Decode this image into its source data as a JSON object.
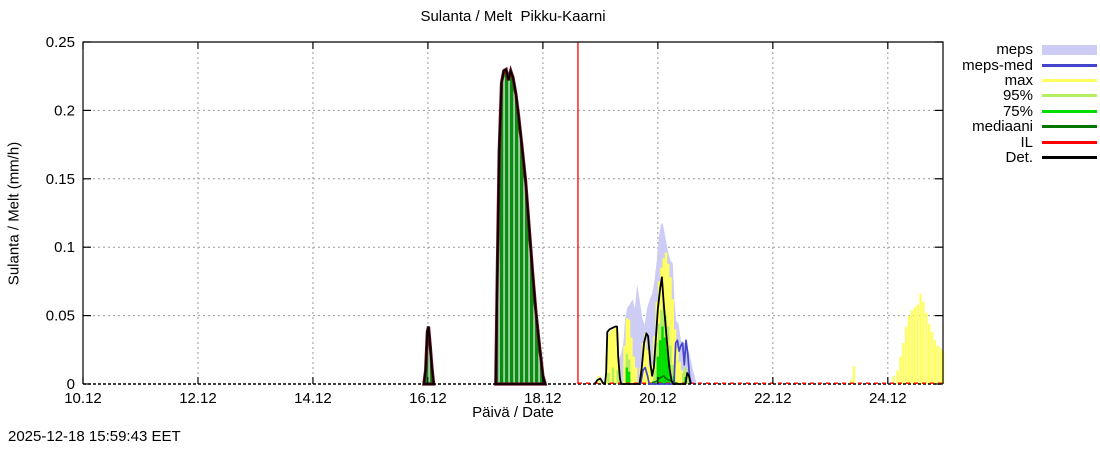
{
  "header": {
    "title": "Sulanta / Melt  Pikku-Kaarni"
  },
  "footer": {
    "timestamp": "2025-12-18 15:59:43 EET"
  },
  "chart_data": {
    "type": "area",
    "subtype": "ensemble-melt-forecast",
    "title": "Sulanta / Melt  Pikku-Kaarni",
    "xlabel": "Päivä / Date",
    "ylabel": "Sulanta / Melt (mm/h)",
    "xlim": [
      10,
      24.96
    ],
    "ylim": [
      0,
      0.25
    ],
    "grid": true,
    "xticks": {
      "values": [
        10,
        12,
        14,
        16,
        18,
        20,
        22,
        24
      ],
      "labels": [
        "10.12",
        "12.12",
        "14.12",
        "16.12",
        "18.12",
        "20.12",
        "22.12",
        "24.12"
      ]
    },
    "yticks": {
      "values": [
        0,
        0.05,
        0.1,
        0.15,
        0.2,
        0.25
      ],
      "labels": [
        "0",
        "0.05",
        "0.1",
        "0.15",
        "0.2",
        "0.25"
      ]
    },
    "colors": {
      "meps_band": "#ccccf5",
      "meps_med": "#4444cc",
      "max": "#ffff60",
      "p95": "#b4ef62",
      "p75": "#00dd00",
      "mediaani": "#007700",
      "il": "#ff0000",
      "det": "#000000",
      "observed_fill": "#0a8c12",
      "observed_edge": "#6b0f1e",
      "grid": "#999999"
    },
    "forecast_start_line": {
      "series": "IL",
      "x": 18.61,
      "color": "#ff0000"
    },
    "observed_areas": [
      [
        [
          15.93,
          0
        ],
        [
          15.96,
          0.01
        ],
        [
          15.99,
          0.038
        ],
        [
          16.01,
          0.042
        ],
        [
          16.04,
          0.028
        ],
        [
          16.07,
          0.012
        ],
        [
          16.1,
          0
        ]
      ],
      [
        [
          17.18,
          0
        ],
        [
          17.21,
          0.09
        ],
        [
          17.24,
          0.17
        ],
        [
          17.28,
          0.22
        ],
        [
          17.32,
          0.229
        ],
        [
          17.36,
          0.23
        ],
        [
          17.4,
          0.222
        ],
        [
          17.44,
          0.229
        ],
        [
          17.48,
          0.224
        ],
        [
          17.53,
          0.212
        ],
        [
          17.58,
          0.195
        ],
        [
          17.64,
          0.172
        ],
        [
          17.7,
          0.148
        ],
        [
          17.76,
          0.115
        ],
        [
          17.82,
          0.082
        ],
        [
          17.88,
          0.052
        ],
        [
          17.94,
          0.028
        ],
        [
          18.0,
          0.006
        ],
        [
          18.04,
          0
        ]
      ]
    ],
    "series": [
      {
        "name": "meps",
        "style": "area",
        "color": "#ccccf5",
        "points": [
          [
            19.28,
            0
          ],
          [
            19.32,
            0.018
          ],
          [
            19.36,
            0.022
          ],
          [
            19.4,
            0.03
          ],
          [
            19.43,
            0.048
          ],
          [
            19.47,
            0.056
          ],
          [
            19.51,
            0.058
          ],
          [
            19.56,
            0.062
          ],
          [
            19.6,
            0.055
          ],
          [
            19.64,
            0.073
          ],
          [
            19.68,
            0.062
          ],
          [
            19.73,
            0.048
          ],
          [
            19.77,
            0.043
          ],
          [
            19.81,
            0.055
          ],
          [
            19.86,
            0.062
          ],
          [
            19.9,
            0.066
          ],
          [
            19.94,
            0.075
          ],
          [
            19.98,
            0.09
          ],
          [
            20.02,
            0.108
          ],
          [
            20.05,
            0.116
          ],
          [
            20.08,
            0.118
          ],
          [
            20.11,
            0.112
          ],
          [
            20.14,
            0.105
          ],
          [
            20.18,
            0.096
          ],
          [
            20.22,
            0.09
          ],
          [
            20.26,
            0.088
          ],
          [
            20.29,
            0.06
          ],
          [
            20.32,
            0.046
          ],
          [
            20.36,
            0.044
          ],
          [
            20.4,
            0.032
          ],
          [
            20.45,
            0.03
          ],
          [
            20.5,
            0.03
          ],
          [
            20.55,
            0.022
          ],
          [
            20.6,
            0.012
          ],
          [
            20.65,
            0.004
          ],
          [
            20.68,
            0
          ]
        ]
      },
      {
        "name": "max",
        "style": "bars",
        "color": "#ffff60",
        "points": [
          [
            18.97,
            0.006
          ],
          [
            19.11,
            0.02
          ],
          [
            19.14,
            0.036
          ],
          [
            19.18,
            0.039
          ],
          [
            19.22,
            0.04
          ],
          [
            19.26,
            0.041
          ],
          [
            19.3,
            0.038
          ],
          [
            19.33,
            0.01
          ],
          [
            19.42,
            0.028
          ],
          [
            19.46,
            0.048
          ],
          [
            19.5,
            0.047
          ],
          [
            19.54,
            0.034
          ],
          [
            19.58,
            0.02
          ],
          [
            19.62,
            0.012
          ],
          [
            19.7,
            0.012
          ],
          [
            19.74,
            0.03
          ],
          [
            19.78,
            0.037
          ],
          [
            19.82,
            0.025
          ],
          [
            19.86,
            0.012
          ],
          [
            19.9,
            0.014
          ],
          [
            19.94,
            0.035
          ],
          [
            19.98,
            0.06
          ],
          [
            20.02,
            0.075
          ],
          [
            20.06,
            0.085
          ],
          [
            20.1,
            0.092
          ],
          [
            20.14,
            0.096
          ],
          [
            20.18,
            0.088
          ],
          [
            20.22,
            0.078
          ],
          [
            20.26,
            0.062
          ],
          [
            20.3,
            0.04
          ],
          [
            20.34,
            0.026
          ],
          [
            20.38,
            0.016
          ],
          [
            20.42,
            0.01
          ],
          [
            20.46,
            0.008
          ],
          [
            20.5,
            0.006
          ],
          [
            23.36,
            0.003
          ],
          [
            23.41,
            0.013
          ],
          [
            24.1,
            0.006
          ],
          [
            24.17,
            0.01
          ],
          [
            24.22,
            0.02
          ],
          [
            24.27,
            0.03
          ],
          [
            24.32,
            0.042
          ],
          [
            24.37,
            0.05
          ],
          [
            24.42,
            0.054
          ],
          [
            24.47,
            0.056
          ],
          [
            24.52,
            0.058
          ],
          [
            24.57,
            0.066
          ],
          [
            24.62,
            0.06
          ],
          [
            24.67,
            0.052
          ],
          [
            24.72,
            0.044
          ],
          [
            24.77,
            0.038
          ],
          [
            24.82,
            0.032
          ],
          [
            24.87,
            0.028
          ],
          [
            24.92,
            0.026
          ],
          [
            24.96,
            0.024
          ]
        ]
      },
      {
        "name": "95%",
        "style": "bars",
        "color": "#b4ef62",
        "points": [
          [
            19.14,
            0.008
          ],
          [
            19.22,
            0.012
          ],
          [
            19.3,
            0.01
          ],
          [
            19.46,
            0.022
          ],
          [
            19.5,
            0.018
          ],
          [
            19.94,
            0.01
          ],
          [
            19.98,
            0.03
          ],
          [
            20.02,
            0.044
          ],
          [
            20.06,
            0.054
          ],
          [
            20.1,
            0.058
          ],
          [
            20.14,
            0.05
          ],
          [
            20.18,
            0.042
          ],
          [
            20.22,
            0.028
          ],
          [
            20.26,
            0.014
          ],
          [
            20.44,
            0.008
          ],
          [
            20.48,
            0.012
          ],
          [
            20.52,
            0.008
          ]
        ]
      },
      {
        "name": "75%",
        "style": "bars",
        "color": "#00dd00",
        "points": [
          [
            19.46,
            0.012
          ],
          [
            19.5,
            0.009
          ],
          [
            20.0,
            0.02
          ],
          [
            20.04,
            0.032
          ],
          [
            20.08,
            0.042
          ],
          [
            20.12,
            0.034
          ],
          [
            20.16,
            0.026
          ],
          [
            20.2,
            0.014
          ],
          [
            20.28,
            0.006
          ],
          [
            20.48,
            0.005
          ]
        ]
      },
      {
        "name": "mediaani",
        "style": "line",
        "color": "#007700",
        "points": [
          [
            19.9,
            0.001
          ],
          [
            19.98,
            0.002
          ],
          [
            20.02,
            0.004
          ],
          [
            20.06,
            0.005
          ],
          [
            20.1,
            0.006
          ],
          [
            20.14,
            0.004
          ],
          [
            20.18,
            0.003
          ],
          [
            20.24,
            0.002
          ],
          [
            20.3,
            0.001
          ],
          [
            20.36,
            0
          ]
        ]
      },
      {
        "name": "meps-med",
        "style": "line",
        "color": "#4444cc",
        "points": [
          [
            19.7,
            0
          ],
          [
            19.74,
            0.01
          ],
          [
            19.78,
            0.012
          ],
          [
            19.82,
            0.006
          ],
          [
            19.85,
            0
          ],
          [
            20.28,
            0
          ],
          [
            20.31,
            0.03
          ],
          [
            20.34,
            0.032
          ],
          [
            20.37,
            0.024
          ],
          [
            20.4,
            0.028
          ],
          [
            20.43,
            0.03
          ],
          [
            20.46,
            0.014
          ],
          [
            20.49,
            0.032
          ],
          [
            20.52,
            0.022
          ],
          [
            20.55,
            0.006
          ],
          [
            20.58,
            0
          ]
        ]
      },
      {
        "name": "Det.",
        "style": "line",
        "color": "#000000",
        "points": [
          [
            18.9,
            0
          ],
          [
            18.95,
            0.003
          ],
          [
            19.0,
            0.004
          ],
          [
            19.04,
            0.001
          ],
          [
            19.08,
            0
          ],
          [
            19.1,
            0.008
          ],
          [
            19.12,
            0.038
          ],
          [
            19.16,
            0.04
          ],
          [
            19.21,
            0.041
          ],
          [
            19.26,
            0.042
          ],
          [
            19.29,
            0.042
          ],
          [
            19.31,
            0.02
          ],
          [
            19.34,
            0.004
          ],
          [
            19.36,
            0
          ],
          [
            19.68,
            0
          ],
          [
            19.72,
            0.012
          ],
          [
            19.76,
            0.03
          ],
          [
            19.8,
            0.037
          ],
          [
            19.83,
            0.035
          ],
          [
            19.87,
            0.015
          ],
          [
            19.9,
            0.006
          ],
          [
            19.93,
            0.012
          ],
          [
            19.96,
            0.03
          ],
          [
            20.0,
            0.055
          ],
          [
            20.04,
            0.07
          ],
          [
            20.07,
            0.078
          ],
          [
            20.1,
            0.06
          ],
          [
            20.13,
            0.045
          ],
          [
            20.16,
            0.03
          ],
          [
            20.2,
            0.012
          ],
          [
            20.24,
            0.002
          ],
          [
            20.27,
            0
          ],
          [
            20.48,
            0
          ],
          [
            20.51,
            0.008
          ],
          [
            20.54,
            0.006
          ],
          [
            20.57,
            0
          ]
        ]
      }
    ],
    "legend": [
      {
        "label": "meps",
        "color": "#ccccf5",
        "style": "band"
      },
      {
        "label": "meps-med",
        "color": "#4444cc",
        "style": "line"
      },
      {
        "label": "max",
        "color": "#ffff60",
        "style": "line"
      },
      {
        "label": "95%",
        "color": "#b4ef62",
        "style": "line"
      },
      {
        "label": "75%",
        "color": "#00dd00",
        "style": "line"
      },
      {
        "label": "mediaani",
        "color": "#007700",
        "style": "line"
      },
      {
        "label": "IL",
        "color": "#ff0000",
        "style": "line"
      },
      {
        "label": "Det.",
        "color": "#000000",
        "style": "line"
      }
    ]
  }
}
